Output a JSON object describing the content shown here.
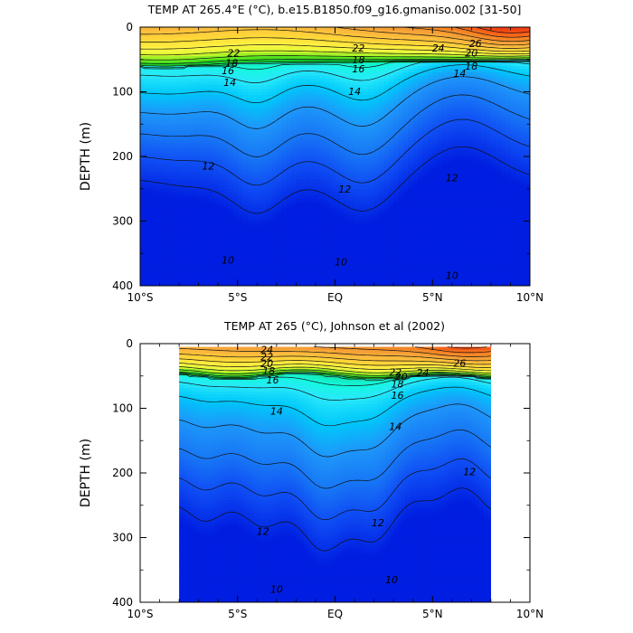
{
  "chart_data": [
    {
      "type": "contour",
      "title": "TEMP AT 265.4°E (°C), b.e15.B1850.f09_g16.gmaniso.002 [31-50]",
      "ylabel": "DEPTH (m)",
      "xlabel": "",
      "xlim": [
        -10,
        10
      ],
      "ylim": [
        400,
        0
      ],
      "x_ticks": [
        -10,
        -5,
        0,
        5,
        10
      ],
      "x_tick_labels": [
        "10°S",
        "5°S",
        "EQ",
        "5°N",
        "10°N"
      ],
      "y_ticks": [
        0,
        100,
        200,
        300,
        400
      ],
      "y_tick_labels": [
        "0",
        "100",
        "200",
        "300",
        "400"
      ],
      "data_xrange": [
        -10,
        10
      ],
      "data_depth_range": [
        0,
        400
      ],
      "levels": [
        9,
        10,
        11,
        12,
        13,
        14,
        15,
        16,
        17,
        18,
        19,
        20,
        21,
        22,
        23,
        24,
        25,
        26,
        27
      ],
      "contour_labels": [
        {
          "text": "22",
          "x": -5.2,
          "y": 40
        },
        {
          "text": "22",
          "x": 1.2,
          "y": 32
        },
        {
          "text": "24",
          "x": 5.3,
          "y": 32
        },
        {
          "text": "26",
          "x": 7.2,
          "y": 25
        },
        {
          "text": "20",
          "x": 7.0,
          "y": 40
        },
        {
          "text": "18",
          "x": -5.3,
          "y": 55
        },
        {
          "text": "16",
          "x": -5.5,
          "y": 67
        },
        {
          "text": "18",
          "x": 1.2,
          "y": 50
        },
        {
          "text": "16",
          "x": 1.2,
          "y": 64
        },
        {
          "text": "18",
          "x": 7.0,
          "y": 60
        },
        {
          "text": "14",
          "x": 6.4,
          "y": 71
        },
        {
          "text": "14",
          "x": -5.4,
          "y": 85
        },
        {
          "text": "14",
          "x": 1.0,
          "y": 99
        },
        {
          "text": "12",
          "x": -6.5,
          "y": 215
        },
        {
          "text": "12",
          "x": 0.5,
          "y": 250
        },
        {
          "text": "12",
          "x": 6.0,
          "y": 233
        },
        {
          "text": "10",
          "x": -5.5,
          "y": 360
        },
        {
          "text": "10",
          "x": 0.3,
          "y": 363
        },
        {
          "text": "10",
          "x": 6.0,
          "y": 384
        }
      ]
    },
    {
      "type": "contour",
      "title": "TEMP AT 265 (°C), Johnson et al (2002)",
      "ylabel": "DEPTH (m)",
      "xlabel": "",
      "xlim": [
        -10,
        10
      ],
      "ylim": [
        400,
        0
      ],
      "x_ticks": [
        -10,
        -5,
        0,
        5,
        10
      ],
      "x_tick_labels": [
        "10°S",
        "5°S",
        "EQ",
        "5°N",
        "10°N"
      ],
      "y_ticks": [
        0,
        100,
        200,
        300,
        400
      ],
      "y_tick_labels": [
        "0",
        "100",
        "200",
        "300",
        "400"
      ],
      "data_xrange": [
        -8,
        8
      ],
      "data_depth_range": [
        5,
        400
      ],
      "levels": [
        9,
        10,
        11,
        12,
        13,
        14,
        15,
        16,
        17,
        18,
        19,
        20,
        21,
        22,
        23,
        24,
        25,
        26,
        27
      ],
      "contour_labels": [
        {
          "text": "24",
          "x": -3.5,
          "y": 9
        },
        {
          "text": "22",
          "x": -3.5,
          "y": 20
        },
        {
          "text": "20",
          "x": -3.5,
          "y": 31
        },
        {
          "text": "18",
          "x": -3.4,
          "y": 42
        },
        {
          "text": "16",
          "x": -3.2,
          "y": 56
        },
        {
          "text": "22",
          "x": 3.1,
          "y": 44
        },
        {
          "text": "20",
          "x": 3.4,
          "y": 51
        },
        {
          "text": "18",
          "x": 3.2,
          "y": 62
        },
        {
          "text": "24",
          "x": 4.5,
          "y": 45
        },
        {
          "text": "26",
          "x": 6.4,
          "y": 30
        },
        {
          "text": "16",
          "x": 3.2,
          "y": 80
        },
        {
          "text": "14",
          "x": -3.0,
          "y": 104
        },
        {
          "text": "14",
          "x": 3.1,
          "y": 128
        },
        {
          "text": "12",
          "x": 6.9,
          "y": 198
        },
        {
          "text": "12",
          "x": -3.7,
          "y": 290
        },
        {
          "text": "12",
          "x": 2.2,
          "y": 277
        },
        {
          "text": "10",
          "x": -3.0,
          "y": 380
        },
        {
          "text": "10",
          "x": 2.9,
          "y": 365
        }
      ]
    }
  ]
}
